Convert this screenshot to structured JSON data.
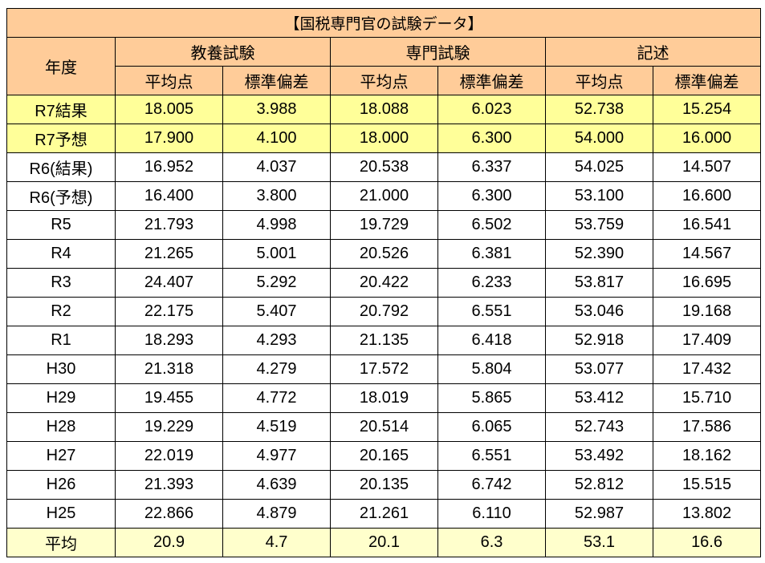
{
  "title": "【国税専門官の試験データ】",
  "headers": {
    "year": "年度",
    "groups": [
      "教養試験",
      "専門試験",
      "記述"
    ],
    "sub": [
      "平均点",
      "標準偏差",
      "平均点",
      "標準偏差",
      "平均点",
      "標準偏差"
    ]
  },
  "colors": {
    "header": "#FFCC99",
    "highlight": "#FFFF99",
    "average": "#FFFFCC"
  },
  "rows": [
    {
      "year": "R7結果",
      "v": [
        "18.005",
        "3.988",
        "18.088",
        "6.023",
        "52.738",
        "15.254"
      ],
      "style": "hl"
    },
    {
      "year": "R7予想",
      "v": [
        "17.900",
        "4.100",
        "18.000",
        "6.300",
        "54.000",
        "16.000"
      ],
      "style": "hl"
    },
    {
      "year": "R6(結果)",
      "v": [
        "16.952",
        "4.037",
        "20.538",
        "6.337",
        "54.025",
        "14.507"
      ],
      "style": ""
    },
    {
      "year": "R6(予想)",
      "v": [
        "16.400",
        "3.800",
        "21.000",
        "6.300",
        "53.100",
        "16.600"
      ],
      "style": ""
    },
    {
      "year": "R5",
      "v": [
        "21.793",
        "4.998",
        "19.729",
        "6.502",
        "53.759",
        "16.541"
      ],
      "style": ""
    },
    {
      "year": "R4",
      "v": [
        "21.265",
        "5.001",
        "20.526",
        "6.381",
        "52.390",
        "14.567"
      ],
      "style": ""
    },
    {
      "year": "R3",
      "v": [
        "24.407",
        "5.292",
        "20.422",
        "6.233",
        "53.817",
        "16.695"
      ],
      "style": ""
    },
    {
      "year": "R2",
      "v": [
        "22.175",
        "5.407",
        "20.792",
        "6.551",
        "53.046",
        "19.168"
      ],
      "style": ""
    },
    {
      "year": "R1",
      "v": [
        "18.293",
        "4.293",
        "21.135",
        "6.418",
        "52.918",
        "17.409"
      ],
      "style": ""
    },
    {
      "year": "H30",
      "v": [
        "21.318",
        "4.279",
        "17.572",
        "5.804",
        "53.077",
        "17.432"
      ],
      "style": ""
    },
    {
      "year": "H29",
      "v": [
        "19.455",
        "4.772",
        "18.019",
        "5.865",
        "53.412",
        "15.710"
      ],
      "style": ""
    },
    {
      "year": "H28",
      "v": [
        "19.229",
        "4.519",
        "20.514",
        "6.065",
        "52.743",
        "17.586"
      ],
      "style": ""
    },
    {
      "year": "H27",
      "v": [
        "22.019",
        "4.977",
        "20.165",
        "6.551",
        "53.492",
        "18.162"
      ],
      "style": ""
    },
    {
      "year": "H26",
      "v": [
        "21.393",
        "4.639",
        "20.135",
        "6.742",
        "52.812",
        "15.515"
      ],
      "style": ""
    },
    {
      "year": "H25",
      "v": [
        "22.866",
        "4.879",
        "21.261",
        "6.110",
        "52.987",
        "13.802"
      ],
      "style": ""
    },
    {
      "year": "平均",
      "v": [
        "20.9",
        "4.7",
        "20.1",
        "6.3",
        "53.1",
        "16.6"
      ],
      "style": "avg"
    }
  ]
}
